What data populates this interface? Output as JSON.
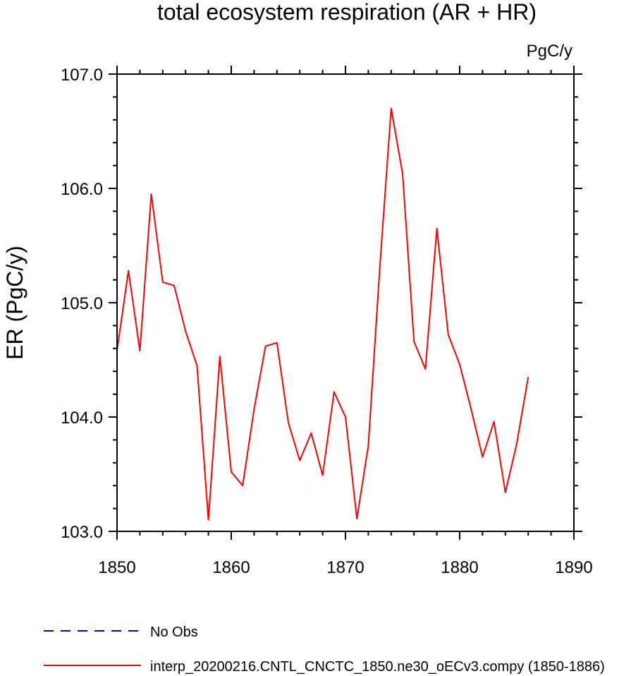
{
  "chart_data": {
    "type": "line",
    "title": "total ecosystem respiration (AR + HR)",
    "units_label": "PgC/y",
    "ylabel": "ER  (PgC/y)",
    "xlabel": "",
    "xlim": [
      1850,
      1890
    ],
    "ylim": [
      103.0,
      107.0
    ],
    "x_ticks": [
      1850,
      1860,
      1870,
      1880,
      1890
    ],
    "y_ticks": [
      103.0,
      104.0,
      105.0,
      106.0,
      107.0
    ],
    "x_tick_labels": [
      "1850",
      "1860",
      "1870",
      "1880",
      "1890"
    ],
    "y_tick_labels": [
      "103.0",
      "104.0",
      "105.0",
      "106.0",
      "107.0"
    ],
    "x_minor_step": 2,
    "y_minor_step": 0.2,
    "grid": false,
    "legend_position": "bottom",
    "series": [
      {
        "name": "interp_20200216.CNTL_CNCTC_1850.ne30_oECv3.compy (1850-1886)",
        "color": "#ff0000",
        "style": "solid",
        "x": [
          1850,
          1851,
          1852,
          1853,
          1854,
          1855,
          1856,
          1857,
          1858,
          1859,
          1860,
          1861,
          1862,
          1863,
          1864,
          1865,
          1866,
          1867,
          1868,
          1869,
          1870,
          1871,
          1872,
          1873,
          1874,
          1875,
          1876,
          1877,
          1878,
          1879,
          1880,
          1881,
          1882,
          1883,
          1884,
          1885,
          1886
        ],
        "y": [
          104.58,
          105.28,
          104.58,
          105.95,
          105.18,
          105.15,
          104.75,
          104.45,
          103.1,
          104.53,
          103.52,
          103.4,
          104.07,
          104.62,
          104.65,
          103.95,
          103.62,
          103.86,
          103.49,
          104.22,
          104.0,
          103.11,
          103.75,
          105.3,
          106.7,
          106.13,
          104.66,
          104.42,
          105.65,
          104.72,
          104.46,
          104.07,
          103.65,
          103.96,
          103.34,
          103.77,
          104.35
        ]
      }
    ],
    "legend": [
      {
        "label": "No Obs",
        "color": "#0000cc",
        "style": "dashed"
      },
      {
        "label": "interp_20200216.CNTL_CNCTC_1850.ne30_oECv3.compy (1850-1886)",
        "color": "#ff0000",
        "style": "solid"
      }
    ]
  }
}
